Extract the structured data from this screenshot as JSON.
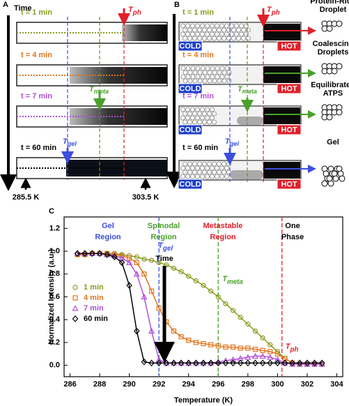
{
  "panel_a": {
    "label": "A",
    "time_label": "Time",
    "rows": [
      "t = 1 min",
      "t = 4 min",
      "t = 7 min",
      "t = 60 min"
    ],
    "t_ph": {
      "main": "T",
      "sub": "ph"
    },
    "t_meta": {
      "main": "T",
      "sub": "meta"
    },
    "t_gel": {
      "main": "T",
      "sub": "gel"
    },
    "low_temp": "285.5 K",
    "high_temp": "303.5 K"
  },
  "panel_b": {
    "label": "B",
    "rows": [
      "t = 1 min",
      "t = 4 min",
      "t = 7 min",
      "t = 60 min"
    ],
    "cold": "COLD",
    "hot": "HOT",
    "t_ph": {
      "main": "T",
      "sub": "ph"
    },
    "t_meta": {
      "main": "T",
      "sub": "meta"
    },
    "t_gel": {
      "main": "T",
      "sub": "gel"
    },
    "stages": [
      [
        "Protein-Rich",
        "Droplet"
      ],
      [
        "Coalescing",
        "Droplets"
      ],
      [
        "Equilibrated",
        "ATPS"
      ],
      [
        "Gel"
      ]
    ]
  },
  "chart_data": {
    "panel_label": "C",
    "type": "line",
    "x_label": "Temperature (K)",
    "y_label": "Normalized Intensity (a.u.)",
    "x": [
      286.5,
      287,
      287.5,
      288,
      288.5,
      289,
      289.5,
      290,
      290.5,
      291,
      291.5,
      292,
      292.5,
      293,
      293.5,
      294,
      294.5,
      295,
      295.5,
      296,
      296.5,
      297,
      297.5,
      298,
      298.5,
      299,
      299.5,
      300,
      300.5,
      301,
      301.5,
      302,
      302.5,
      303
    ],
    "series": [
      {
        "name": "1 min",
        "color": "#8a9a1e",
        "marker": "circle",
        "values": [
          0.97,
          0.97,
          0.98,
          0.98,
          0.98,
          0.98,
          0.97,
          0.96,
          0.95,
          0.93,
          0.92,
          0.9,
          0.88,
          0.85,
          0.82,
          0.78,
          0.74,
          0.7,
          0.65,
          0.6,
          0.54,
          0.48,
          0.42,
          0.36,
          0.3,
          0.24,
          0.18,
          0.12,
          0.06,
          0.02,
          0.01,
          0.01,
          0.01,
          0.01
        ]
      },
      {
        "name": "4 min",
        "color": "#e2741c",
        "marker": "square",
        "values": [
          0.97,
          0.97,
          0.98,
          0.98,
          0.98,
          0.97,
          0.96,
          0.94,
          0.9,
          0.8,
          0.65,
          0.5,
          0.38,
          0.3,
          0.25,
          0.22,
          0.2,
          0.19,
          0.18,
          0.17,
          0.16,
          0.16,
          0.15,
          0.15,
          0.14,
          0.13,
          0.12,
          0.1,
          0.06,
          0.02,
          0.01,
          0.01,
          0.01,
          0.01
        ]
      },
      {
        "name": "7 min",
        "color": "#b04fd8",
        "marker": "triangle",
        "values": [
          0.98,
          0.98,
          0.98,
          0.98,
          0.97,
          0.96,
          0.94,
          0.9,
          0.8,
          0.6,
          0.3,
          0.05,
          0.02,
          0.02,
          0.02,
          0.02,
          0.02,
          0.02,
          0.02,
          0.03,
          0.04,
          0.05,
          0.06,
          0.07,
          0.08,
          0.08,
          0.07,
          0.05,
          0.02,
          0.01,
          0.01,
          0.01,
          0.01,
          0.01
        ]
      },
      {
        "name": "60 min",
        "color": "#000000",
        "marker": "diamond",
        "values": [
          0.98,
          0.98,
          0.98,
          0.98,
          0.97,
          0.95,
          0.9,
          0.7,
          0.3,
          0.03,
          0.02,
          0.02,
          0.02,
          0.02,
          0.02,
          0.02,
          0.02,
          0.02,
          0.02,
          0.02,
          0.02,
          0.02,
          0.02,
          0.02,
          0.02,
          0.02,
          0.02,
          0.02,
          0.02,
          0.02,
          0.02,
          0.02,
          0.02,
          0.02
        ]
      }
    ],
    "xlim": [
      285.6,
      304.4
    ],
    "ylim": [
      -0.1,
      1.3
    ],
    "xticks": [
      286,
      288,
      290,
      292,
      294,
      296,
      298,
      300,
      302,
      304
    ],
    "yticks": [
      {
        "value": 0,
        "label": "0.0"
      },
      {
        "value": 0.2,
        "label": "0.2"
      },
      {
        "value": 0.4,
        "label": "0.4"
      },
      {
        "value": 0.6,
        "label": "0.6"
      },
      {
        "value": 0.8,
        "label": "0.8"
      },
      {
        "value": 1,
        "label": "1.0"
      },
      {
        "value": 1.2,
        "label": "1.2"
      }
    ],
    "thresholds": [
      {
        "x": 292,
        "color": "#3b4fe0",
        "main": "T",
        "sub": "gel"
      },
      {
        "x": 296,
        "color": "#4aa02a",
        "main": "T",
        "sub": "meta"
      },
      {
        "x": 300.3,
        "color": "#e0202a",
        "main": "T",
        "sub": "ph"
      }
    ],
    "regions": [
      {
        "lines": [
          "Gel",
          "Region"
        ],
        "color": "#3b4fe0"
      },
      {
        "lines": [
          "Spinodal",
          "Region"
        ],
        "color": "#4aa02a"
      },
      {
        "lines": [
          "Metastable",
          "Region"
        ],
        "color": "#e0202a"
      },
      {
        "lines": [
          "One",
          "Phase"
        ],
        "color": "#000000"
      }
    ],
    "time_arrow": "Time",
    "legend": "left"
  }
}
